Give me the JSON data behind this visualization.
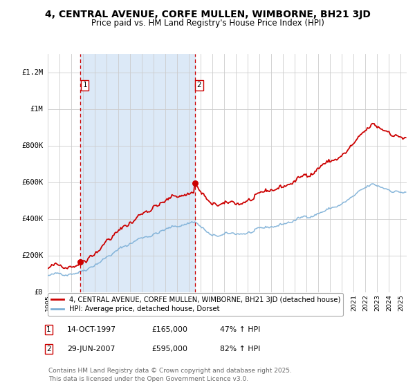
{
  "title": "4, CENTRAL AVENUE, CORFE MULLEN, WIMBORNE, BH21 3JD",
  "subtitle": "Price paid vs. HM Land Registry's House Price Index (HPI)",
  "title_fontsize": 10,
  "subtitle_fontsize": 8.5,
  "xlim": [
    1995.0,
    2025.5
  ],
  "ylim": [
    0,
    1300000
  ],
  "yticks": [
    0,
    200000,
    400000,
    600000,
    800000,
    1000000,
    1200000
  ],
  "ytick_labels": [
    "£0",
    "£200K",
    "£400K",
    "£600K",
    "£800K",
    "£1M",
    "£1.2M"
  ],
  "xticks": [
    1995,
    1996,
    1997,
    1998,
    1999,
    2000,
    2001,
    2002,
    2003,
    2004,
    2005,
    2006,
    2007,
    2008,
    2009,
    2010,
    2011,
    2012,
    2013,
    2014,
    2015,
    2016,
    2017,
    2018,
    2019,
    2020,
    2021,
    2022,
    2023,
    2024,
    2025
  ],
  "grid_color": "#cccccc",
  "bg_color": "#ffffff",
  "shaded_region": [
    1997.79,
    2007.49
  ],
  "shaded_color": "#dce9f7",
  "vline1_x": 1997.79,
  "vline2_x": 2007.49,
  "vline_color": "#cc0000",
  "sale1_x": 1997.79,
  "sale1_y": 165000,
  "sale2_x": 2007.49,
  "sale2_y": 595000,
  "marker_color": "#cc0000",
  "red_line_color": "#cc0000",
  "blue_line_color": "#7aaed6",
  "legend_label_red": "4, CENTRAL AVENUE, CORFE MULLEN, WIMBORNE, BH21 3JD (detached house)",
  "legend_label_blue": "HPI: Average price, detached house, Dorset",
  "annot1_date": "14-OCT-1997",
  "annot1_price": "£165,000",
  "annot1_hpi": "47% ↑ HPI",
  "annot2_date": "29-JUN-2007",
  "annot2_price": "£595,000",
  "annot2_hpi": "82% ↑ HPI",
  "footer": "Contains HM Land Registry data © Crown copyright and database right 2025.\nThis data is licensed under the Open Government Licence v3.0.",
  "footer_fontsize": 6.5
}
